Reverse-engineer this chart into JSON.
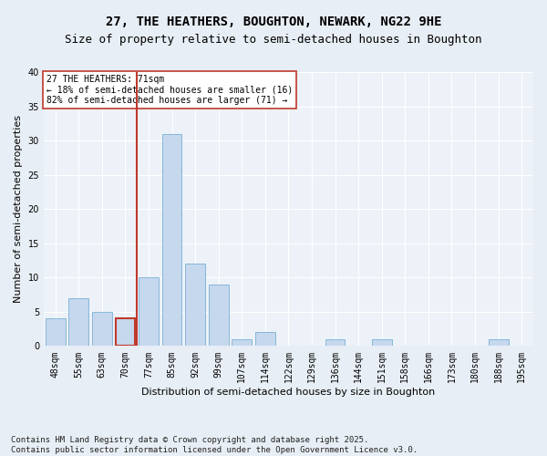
{
  "title1": "27, THE HEATHERS, BOUGHTON, NEWARK, NG22 9HE",
  "title2": "Size of property relative to semi-detached houses in Boughton",
  "xlabel": "Distribution of semi-detached houses by size in Boughton",
  "ylabel": "Number of semi-detached properties",
  "categories": [
    "48sqm",
    "55sqm",
    "63sqm",
    "70sqm",
    "77sqm",
    "85sqm",
    "92sqm",
    "99sqm",
    "107sqm",
    "114sqm",
    "122sqm",
    "129sqm",
    "136sqm",
    "144sqm",
    "151sqm",
    "158sqm",
    "166sqm",
    "173sqm",
    "180sqm",
    "188sqm",
    "195sqm"
  ],
  "values": [
    4,
    7,
    5,
    4,
    10,
    31,
    12,
    9,
    1,
    2,
    0,
    0,
    1,
    0,
    1,
    0,
    0,
    0,
    0,
    1,
    0
  ],
  "bar_color": "#c5d8ee",
  "bar_edge_color": "#7aafd4",
  "highlight_bar_index": 3,
  "highlight_color": "#c0392b",
  "vline_x": 3.5,
  "annotation_label": "27 THE HEATHERS: 71sqm",
  "annotation_line1": "← 18% of semi-detached houses are smaller (16)",
  "annotation_line2": "82% of semi-detached houses are larger (71) →",
  "ylim": [
    0,
    40
  ],
  "yticks": [
    0,
    5,
    10,
    15,
    20,
    25,
    30,
    35,
    40
  ],
  "footer": "Contains HM Land Registry data © Crown copyright and database right 2025.\nContains public sector information licensed under the Open Government Licence v3.0.",
  "bg_color": "#e8eef5",
  "plot_bg_color": "#edf2f8",
  "grid_color": "#ffffff",
  "annotation_box_color": "#ffffff",
  "annotation_box_edge_color": "#c0392b",
  "title_fontsize": 10,
  "subtitle_fontsize": 9,
  "axis_label_fontsize": 8,
  "tick_fontsize": 7,
  "annotation_fontsize": 7,
  "footer_fontsize": 6.5
}
